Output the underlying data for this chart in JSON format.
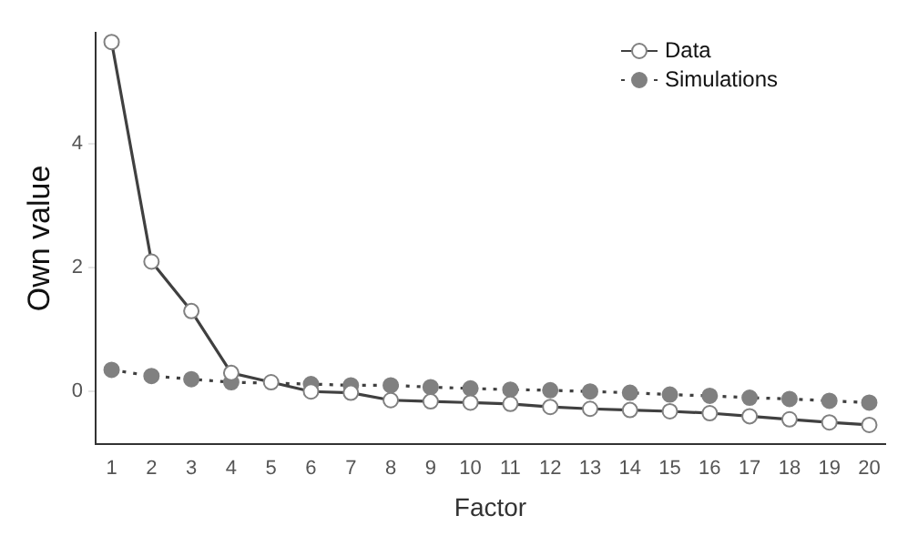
{
  "chart_data": {
    "type": "line",
    "xlabel": "Factor",
    "ylabel": "Own value",
    "x": [
      1,
      2,
      3,
      4,
      5,
      6,
      7,
      8,
      9,
      10,
      11,
      12,
      13,
      14,
      15,
      16,
      17,
      18,
      19,
      20
    ],
    "xlim": [
      0.6,
      20.4
    ],
    "xticks": [
      1,
      2,
      3,
      4,
      5,
      6,
      7,
      8,
      9,
      10,
      11,
      12,
      13,
      14,
      15,
      16,
      17,
      18,
      19,
      20
    ],
    "ylim": [
      -0.85,
      5.8
    ],
    "yticks": [
      0,
      2,
      4
    ],
    "grid": false,
    "legend": "top right",
    "marker": "circle",
    "series": [
      {
        "name": "Data",
        "color": "#ffffff",
        "line_style": "solid",
        "values": [
          5.65,
          2.1,
          1.3,
          0.3,
          0.15,
          0.0,
          -0.02,
          -0.14,
          -0.16,
          -0.18,
          -0.2,
          -0.25,
          -0.28,
          -0.3,
          -0.32,
          -0.35,
          -0.4,
          -0.45,
          -0.5,
          -0.54
        ]
      },
      {
        "name": "Simulations",
        "color": "#808080",
        "line_style": "dotted",
        "values": [
          0.35,
          0.25,
          0.2,
          0.15,
          null,
          0.12,
          0.1,
          0.1,
          0.07,
          0.05,
          0.03,
          0.02,
          0.0,
          -0.02,
          -0.05,
          -0.07,
          -0.1,
          -0.12,
          -0.15,
          -0.18
        ]
      }
    ]
  }
}
